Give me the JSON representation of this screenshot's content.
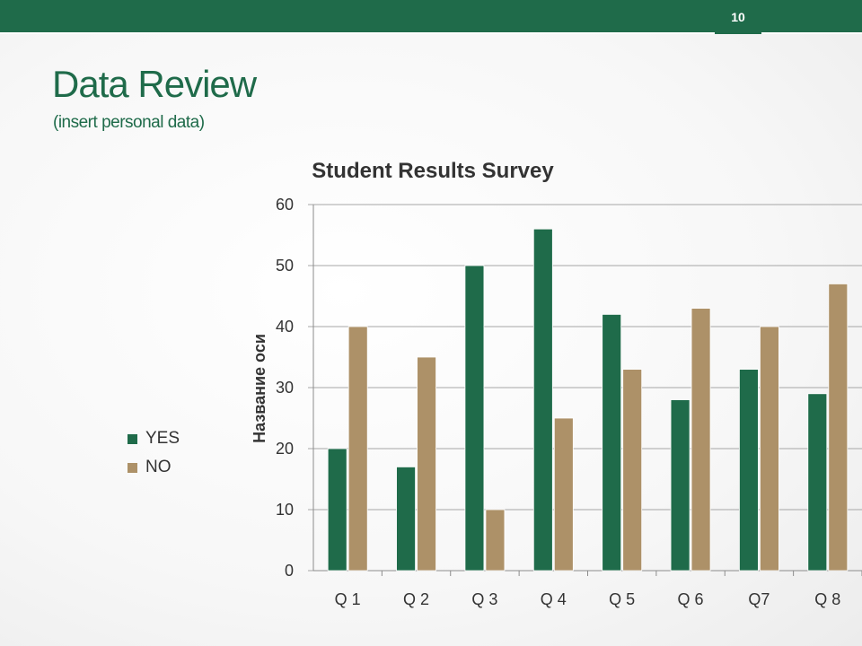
{
  "slide": {
    "number": "10",
    "title": "Data Review",
    "subtitle": "(insert personal data)"
  },
  "colors": {
    "brand_green": "#1f6b4a",
    "yes": "#1f6b4a",
    "no": "#ad9168"
  },
  "chart_data": {
    "type": "bar",
    "title": "Student Results Survey",
    "xlabel": "",
    "ylabel": "Название оси",
    "categories": [
      "Q 1",
      "Q 2",
      "Q 3",
      "Q 4",
      "Q 5",
      "Q 6",
      "Q7",
      "Q 8"
    ],
    "series": [
      {
        "name": "YES",
        "values": [
          20,
          17,
          50,
          56,
          42,
          28,
          33,
          29
        ]
      },
      {
        "name": "NO",
        "values": [
          40,
          35,
          10,
          25,
          33,
          43,
          40,
          47
        ]
      }
    ],
    "ylim": [
      0,
      60
    ],
    "yticks": [
      "0",
      "10",
      "20",
      "30",
      "40",
      "50",
      "60"
    ],
    "grid": true,
    "legend_position": "left"
  }
}
